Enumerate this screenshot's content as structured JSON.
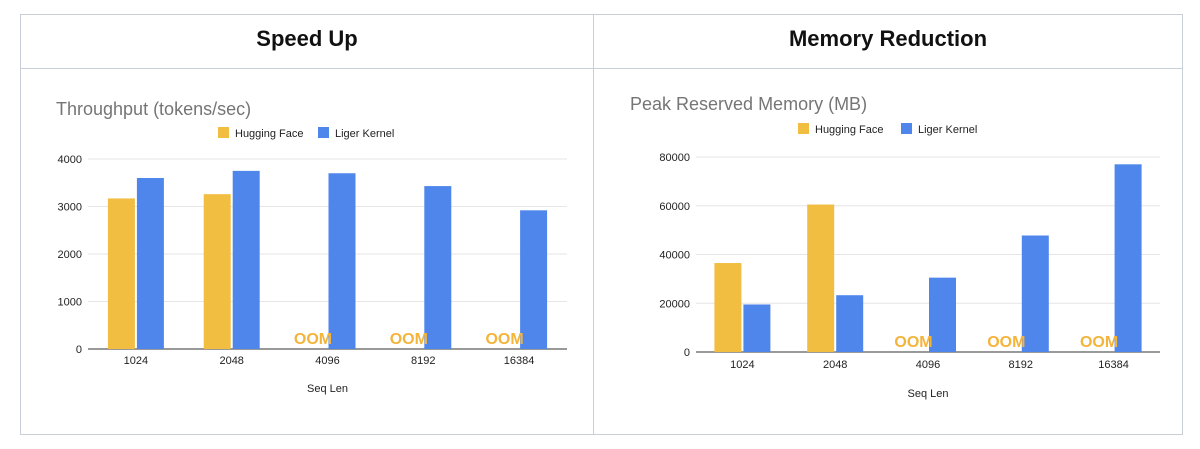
{
  "panels": {
    "left_title": "Speed Up",
    "right_title": "Memory Reduction"
  },
  "colors": {
    "hugging_face": "#f1be42",
    "liger_kernel": "#4f86ec",
    "oom": "#f4b43a",
    "grid": "#e6e6e6"
  },
  "chart_data": [
    {
      "type": "bar",
      "title": "Throughput (tokens/sec)",
      "xlabel": "Seq Len",
      "ylabel": "",
      "categories": [
        "1024",
        "2048",
        "4096",
        "8192",
        "16384"
      ],
      "ylim": [
        0,
        4000
      ],
      "yticks": [
        0,
        1000,
        2000,
        3000,
        4000
      ],
      "yticklabels": [
        "0",
        "1000",
        "2000",
        "3000",
        "4000"
      ],
      "legend_position": "top-center",
      "grid": true,
      "series": [
        {
          "name": "Hugging Face",
          "values": [
            3170,
            3260,
            null,
            null,
            null
          ]
        },
        {
          "name": "Liger Kernel",
          "values": [
            3600,
            3750,
            3700,
            3430,
            2920
          ]
        }
      ],
      "annotations": [
        "",
        "",
        "OOM",
        "OOM",
        "OOM"
      ]
    },
    {
      "type": "bar",
      "title": "Peak Reserved Memory (MB)",
      "xlabel": "Seq Len",
      "ylabel": "",
      "categories": [
        "1024",
        "2048",
        "4096",
        "8192",
        "16384"
      ],
      "ylim": [
        0,
        80000
      ],
      "yticks": [
        0,
        20000,
        40000,
        60000,
        80000
      ],
      "yticklabels": [
        "0",
        "20000",
        "40000",
        "60000",
        "80000"
      ],
      "legend_position": "top-center",
      "grid": true,
      "series": [
        {
          "name": "Hugging Face",
          "values": [
            36500,
            60500,
            null,
            null,
            null
          ]
        },
        {
          "name": "Liger Kernel",
          "values": [
            19500,
            23300,
            30500,
            47800,
            77000
          ]
        }
      ],
      "annotations": [
        "",
        "",
        "OOM",
        "OOM",
        "OOM"
      ]
    }
  ]
}
